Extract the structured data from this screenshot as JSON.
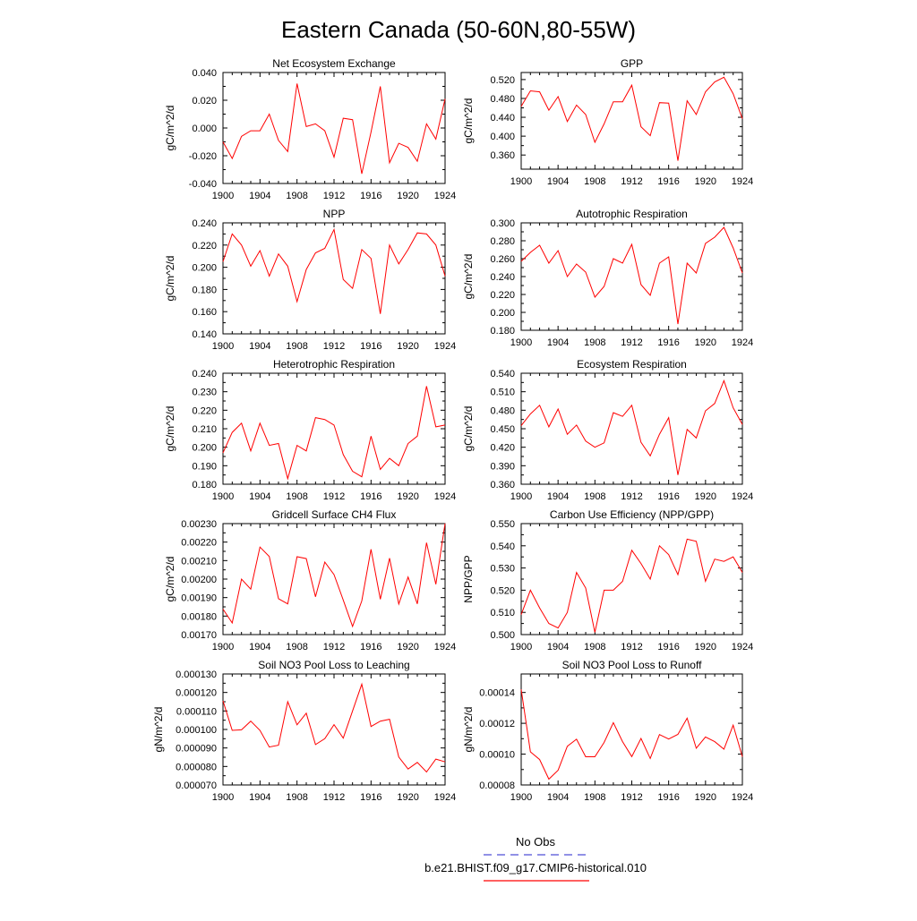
{
  "page": {
    "title": "Eastern Canada (50-60N,80-55W)"
  },
  "legend": {
    "entries": [
      {
        "label": "No Obs",
        "color": "#4f4fd6",
        "dashed": true
      },
      {
        "label": "b.e21.BHIST.f09_g17.CMIP6-historical.010",
        "color": "#ff0000",
        "dashed": false
      }
    ]
  },
  "chart_data": [
    {
      "type": "line",
      "title": "Net Ecosystem Exchange",
      "ylabel": "gC/m^2/d",
      "xlim": [
        1900,
        1924
      ],
      "ylim": [
        -0.04,
        0.04
      ],
      "xticks": [
        "1900",
        "1904",
        "1908",
        "1912",
        "1916",
        "1920",
        "1924"
      ],
      "yticks": [
        {
          "v": 0.04,
          "label": "0.040"
        },
        {
          "v": 0.02,
          "label": "0.020"
        },
        {
          "v": 0.0,
          "label": "0.000"
        },
        {
          "v": -0.02,
          "label": "-0.020"
        },
        {
          "v": -0.04,
          "label": "-0.040"
        }
      ],
      "series": [
        {
          "color": "#ff0000",
          "x": [
            1900,
            1901,
            1902,
            1903,
            1904,
            1905,
            1906,
            1907,
            1908,
            1909,
            1910,
            1911,
            1912,
            1913,
            1914,
            1915,
            1916,
            1917,
            1918,
            1919,
            1920,
            1921,
            1922,
            1923,
            1924
          ],
          "y": [
            -0.01,
            -0.022,
            -0.006,
            -0.002,
            -0.002,
            0.01,
            -0.009,
            -0.017,
            0.032,
            0.001,
            0.003,
            -0.002,
            -0.021,
            0.007,
            0.006,
            -0.033,
            -0.003,
            0.03,
            -0.025,
            -0.011,
            -0.014,
            -0.024,
            0.003,
            -0.008,
            0.021
          ]
        }
      ]
    },
    {
      "type": "line",
      "title": "GPP",
      "ylabel": "gC/m^2/d",
      "xlim": [
        1900,
        1924
      ],
      "ylim": [
        0.33,
        0.535
      ],
      "xticks": [
        "1900",
        "1904",
        "1908",
        "1912",
        "1916",
        "1920",
        "1924"
      ],
      "yticks": [
        {
          "v": 0.52,
          "label": "0.520"
        },
        {
          "v": 0.48,
          "label": "0.480"
        },
        {
          "v": 0.44,
          "label": "0.440"
        },
        {
          "v": 0.4,
          "label": "0.400"
        },
        {
          "v": 0.36,
          "label": "0.360"
        }
      ],
      "series": [
        {
          "color": "#ff0000",
          "x": [
            1900,
            1901,
            1902,
            1903,
            1904,
            1905,
            1906,
            1907,
            1908,
            1909,
            1910,
            1911,
            1912,
            1913,
            1914,
            1915,
            1916,
            1917,
            1918,
            1919,
            1920,
            1921,
            1922,
            1923,
            1924
          ],
          "y": [
            0.463,
            0.496,
            0.494,
            0.455,
            0.484,
            0.431,
            0.466,
            0.446,
            0.387,
            0.426,
            0.473,
            0.473,
            0.508,
            0.42,
            0.401,
            0.471,
            0.47,
            0.348,
            0.475,
            0.446,
            0.494,
            0.515,
            0.525,
            0.49,
            0.437
          ]
        }
      ]
    },
    {
      "type": "line",
      "title": "NPP",
      "ylabel": "gC/m^2/d",
      "xlim": [
        1900,
        1924
      ],
      "ylim": [
        0.14,
        0.24
      ],
      "xticks": [
        "1900",
        "1904",
        "1908",
        "1912",
        "1916",
        "1920",
        "1924"
      ],
      "yticks": [
        {
          "v": 0.24,
          "label": "0.240"
        },
        {
          "v": 0.22,
          "label": "0.220"
        },
        {
          "v": 0.2,
          "label": "0.200"
        },
        {
          "v": 0.18,
          "label": "0.180"
        },
        {
          "v": 0.16,
          "label": "0.160"
        },
        {
          "v": 0.14,
          "label": "0.140"
        }
      ],
      "series": [
        {
          "color": "#ff0000",
          "x": [
            1900,
            1901,
            1902,
            1903,
            1904,
            1905,
            1906,
            1907,
            1908,
            1909,
            1910,
            1911,
            1912,
            1913,
            1914,
            1915,
            1916,
            1917,
            1918,
            1919,
            1920,
            1921,
            1922,
            1923,
            1924
          ],
          "y": [
            0.205,
            0.23,
            0.22,
            0.201,
            0.215,
            0.192,
            0.212,
            0.201,
            0.169,
            0.198,
            0.213,
            0.217,
            0.234,
            0.189,
            0.181,
            0.216,
            0.208,
            0.158,
            0.22,
            0.203,
            0.216,
            0.231,
            0.23,
            0.22,
            0.192
          ]
        }
      ]
    },
    {
      "type": "line",
      "title": "Autotrophic Respiration",
      "ylabel": "gC/m^2/d",
      "xlim": [
        1900,
        1924
      ],
      "ylim": [
        0.18,
        0.3
      ],
      "xticks": [
        "1900",
        "1904",
        "1908",
        "1912",
        "1916",
        "1920",
        "1924"
      ],
      "yticks": [
        {
          "v": 0.3,
          "label": "0.300"
        },
        {
          "v": 0.28,
          "label": "0.280"
        },
        {
          "v": 0.26,
          "label": "0.260"
        },
        {
          "v": 0.24,
          "label": "0.240"
        },
        {
          "v": 0.22,
          "label": "0.220"
        },
        {
          "v": 0.2,
          "label": "0.200"
        },
        {
          "v": 0.18,
          "label": "0.180"
        }
      ],
      "series": [
        {
          "color": "#ff0000",
          "x": [
            1900,
            1901,
            1902,
            1903,
            1904,
            1905,
            1906,
            1907,
            1908,
            1909,
            1910,
            1911,
            1912,
            1913,
            1914,
            1915,
            1916,
            1917,
            1918,
            1919,
            1920,
            1921,
            1922,
            1923,
            1924
          ],
          "y": [
            0.257,
            0.267,
            0.275,
            0.255,
            0.269,
            0.24,
            0.254,
            0.245,
            0.217,
            0.229,
            0.26,
            0.255,
            0.276,
            0.231,
            0.219,
            0.255,
            0.262,
            0.187,
            0.255,
            0.244,
            0.277,
            0.284,
            0.295,
            0.272,
            0.244
          ]
        }
      ]
    },
    {
      "type": "line",
      "title": "Heterotrophic Respiration",
      "ylabel": "gC/m^2/d",
      "xlim": [
        1900,
        1924
      ],
      "ylim": [
        0.18,
        0.24
      ],
      "xticks": [
        "1900",
        "1904",
        "1908",
        "1912",
        "1916",
        "1920",
        "1924"
      ],
      "yticks": [
        {
          "v": 0.24,
          "label": "0.240"
        },
        {
          "v": 0.23,
          "label": "0.230"
        },
        {
          "v": 0.22,
          "label": "0.220"
        },
        {
          "v": 0.21,
          "label": "0.210"
        },
        {
          "v": 0.2,
          "label": "0.200"
        },
        {
          "v": 0.19,
          "label": "0.190"
        },
        {
          "v": 0.18,
          "label": "0.180"
        }
      ],
      "series": [
        {
          "color": "#ff0000",
          "x": [
            1900,
            1901,
            1902,
            1903,
            1904,
            1905,
            1906,
            1907,
            1908,
            1909,
            1910,
            1911,
            1912,
            1913,
            1914,
            1915,
            1916,
            1917,
            1918,
            1919,
            1920,
            1921,
            1922,
            1923,
            1924
          ],
          "y": [
            0.197,
            0.208,
            0.213,
            0.198,
            0.213,
            0.201,
            0.202,
            0.183,
            0.201,
            0.198,
            0.216,
            0.215,
            0.212,
            0.196,
            0.187,
            0.184,
            0.206,
            0.188,
            0.194,
            0.19,
            0.202,
            0.206,
            0.233,
            0.211,
            0.212
          ]
        }
      ]
    },
    {
      "type": "line",
      "title": "Ecosystem Respiration",
      "ylabel": "gC/m^2/d",
      "xlim": [
        1900,
        1924
      ],
      "ylim": [
        0.36,
        0.54
      ],
      "xticks": [
        "1900",
        "1904",
        "1908",
        "1912",
        "1916",
        "1920",
        "1924"
      ],
      "yticks": [
        {
          "v": 0.54,
          "label": "0.540"
        },
        {
          "v": 0.51,
          "label": "0.510"
        },
        {
          "v": 0.48,
          "label": "0.480"
        },
        {
          "v": 0.45,
          "label": "0.450"
        },
        {
          "v": 0.42,
          "label": "0.420"
        },
        {
          "v": 0.39,
          "label": "0.390"
        },
        {
          "v": 0.36,
          "label": "0.360"
        }
      ],
      "series": [
        {
          "color": "#ff0000",
          "x": [
            1900,
            1901,
            1902,
            1903,
            1904,
            1905,
            1906,
            1907,
            1908,
            1909,
            1910,
            1911,
            1912,
            1913,
            1914,
            1915,
            1916,
            1917,
            1918,
            1919,
            1920,
            1921,
            1922,
            1923,
            1924
          ],
          "y": [
            0.455,
            0.474,
            0.488,
            0.453,
            0.482,
            0.441,
            0.456,
            0.43,
            0.42,
            0.427,
            0.476,
            0.47,
            0.488,
            0.428,
            0.406,
            0.441,
            0.468,
            0.375,
            0.449,
            0.435,
            0.479,
            0.491,
            0.528,
            0.484,
            0.457
          ]
        }
      ]
    },
    {
      "type": "line",
      "title": "Gridcell Surface CH4 Flux",
      "ylabel": "gC/m^2/d",
      "xlim": [
        1900,
        1924
      ],
      "ylim": [
        0.0017,
        0.0023
      ],
      "xticks": [
        "1900",
        "1904",
        "1908",
        "1912",
        "1916",
        "1920",
        "1924"
      ],
      "yticks": [
        {
          "v": 0.0023,
          "label": "0.00230"
        },
        {
          "v": 0.0022,
          "label": "0.00220"
        },
        {
          "v": 0.0021,
          "label": "0.00210"
        },
        {
          "v": 0.002,
          "label": "0.00200"
        },
        {
          "v": 0.0019,
          "label": "0.00190"
        },
        {
          "v": 0.0018,
          "label": "0.00180"
        },
        {
          "v": 0.0017,
          "label": "0.00170"
        }
      ],
      "series": [
        {
          "color": "#ff0000",
          "x": [
            1900,
            1901,
            1902,
            1903,
            1904,
            1905,
            1906,
            1907,
            1908,
            1909,
            1910,
            1911,
            1912,
            1913,
            1914,
            1915,
            1916,
            1917,
            1918,
            1919,
            1920,
            1921,
            1922,
            1923,
            1924
          ],
          "y": [
            0.001838,
            0.001763,
            0.002,
            0.001946,
            0.002173,
            0.002122,
            0.001894,
            0.001866,
            0.002121,
            0.002111,
            0.001904,
            0.002092,
            0.002024,
            0.001887,
            0.001744,
            0.001882,
            0.002161,
            0.001891,
            0.002113,
            0.001865,
            0.002011,
            0.001866,
            0.002197,
            0.001972,
            0.002301
          ]
        }
      ]
    },
    {
      "type": "line",
      "title": "Carbon Use Efficiency (NPP/GPP)",
      "ylabel": "NPP/GPP",
      "xlim": [
        1900,
        1924
      ],
      "ylim": [
        0.5,
        0.55
      ],
      "xticks": [
        "1900",
        "1904",
        "1908",
        "1912",
        "1916",
        "1920",
        "1924"
      ],
      "yticks": [
        {
          "v": 0.55,
          "label": "0.550"
        },
        {
          "v": 0.54,
          "label": "0.540"
        },
        {
          "v": 0.53,
          "label": "0.530"
        },
        {
          "v": 0.52,
          "label": "0.520"
        },
        {
          "v": 0.51,
          "label": "0.510"
        },
        {
          "v": 0.5,
          "label": "0.500"
        }
      ],
      "series": [
        {
          "color": "#ff0000",
          "x": [
            1900,
            1901,
            1902,
            1903,
            1904,
            1905,
            1906,
            1907,
            1908,
            1909,
            1910,
            1911,
            1912,
            1913,
            1914,
            1915,
            1916,
            1917,
            1918,
            1919,
            1920,
            1921,
            1922,
            1923,
            1924
          ],
          "y": [
            0.509,
            0.52,
            0.512,
            0.505,
            0.503,
            0.51,
            0.528,
            0.521,
            0.501,
            0.52,
            0.52,
            0.524,
            0.538,
            0.532,
            0.525,
            0.54,
            0.536,
            0.527,
            0.543,
            0.542,
            0.524,
            0.534,
            0.533,
            0.535,
            0.528
          ]
        }
      ]
    },
    {
      "type": "line",
      "title": "Soil NO3 Pool Loss to Leaching",
      "ylabel": "gN/m^2/d",
      "xlim": [
        1900,
        1924
      ],
      "ylim": [
        7e-05,
        0.00013
      ],
      "xticks": [
        "1900",
        "1904",
        "1908",
        "1912",
        "1916",
        "1920",
        "1924"
      ],
      "yticks": [
        {
          "v": 0.00013,
          "label": "0.000130"
        },
        {
          "v": 0.00012,
          "label": "0.000120"
        },
        {
          "v": 0.00011,
          "label": "0.000110"
        },
        {
          "v": 0.0001,
          "label": "0.000100"
        },
        {
          "v": 9e-05,
          "label": "0.000090"
        },
        {
          "v": 8e-05,
          "label": "0.000080"
        },
        {
          "v": 7e-05,
          "label": "0.000070"
        }
      ],
      "series": [
        {
          "color": "#ff0000",
          "x": [
            1900,
            1901,
            1902,
            1903,
            1904,
            1905,
            1906,
            1907,
            1908,
            1909,
            1910,
            1911,
            1912,
            1913,
            1914,
            1915,
            1916,
            1917,
            1918,
            1919,
            1920,
            1921,
            1922,
            1923,
            1924
          ],
          "y": [
            0.0001155,
            9.95e-05,
            9.98e-05,
            0.0001045,
            9.95e-05,
            9.05e-05,
            9.15e-05,
            0.000115,
            0.0001025,
            0.0001088,
            9.18e-05,
            9.5e-05,
            0.0001026,
            9.53e-05,
            0.00011,
            0.0001245,
            0.0001016,
            0.0001045,
            0.0001055,
            8.51e-05,
            7.86e-05,
            8.22e-05,
            7.7e-05,
            8.4e-05,
            8.25e-05
          ]
        }
      ]
    },
    {
      "type": "line",
      "title": "Soil NO3 Pool Loss to Runoff",
      "ylabel": "gN/m^2/d",
      "xlim": [
        1900,
        1924
      ],
      "ylim": [
        8e-05,
        0.000152
      ],
      "xticks": [
        "1900",
        "1904",
        "1908",
        "1912",
        "1916",
        "1920",
        "1924"
      ],
      "yticks": [
        {
          "v": 0.00014,
          "label": "0.00014"
        },
        {
          "v": 0.00012,
          "label": "0.00012"
        },
        {
          "v": 0.0001,
          "label": "0.00010"
        },
        {
          "v": 8e-05,
          "label": "0.00008"
        }
      ],
      "series": [
        {
          "color": "#ff0000",
          "x": [
            1900,
            1901,
            1902,
            1903,
            1904,
            1905,
            1906,
            1907,
            1908,
            1909,
            1910,
            1911,
            1912,
            1913,
            1914,
            1915,
            1916,
            1917,
            1918,
            1919,
            1920,
            1921,
            1922,
            1923,
            1924
          ],
          "y": [
            0.000142,
            0.0001015,
            9.65e-05,
            8.38e-05,
            8.95e-05,
            0.0001051,
            0.0001097,
            9.83e-05,
            9.83e-05,
            0.0001076,
            0.0001204,
            0.0001081,
            9.84e-05,
            0.0001102,
            9.72e-05,
            0.0001127,
            0.0001098,
            0.0001128,
            0.0001233,
            0.0001038,
            0.0001111,
            0.0001081,
            0.0001032,
            0.0001188,
            9.83e-05
          ]
        }
      ]
    }
  ]
}
